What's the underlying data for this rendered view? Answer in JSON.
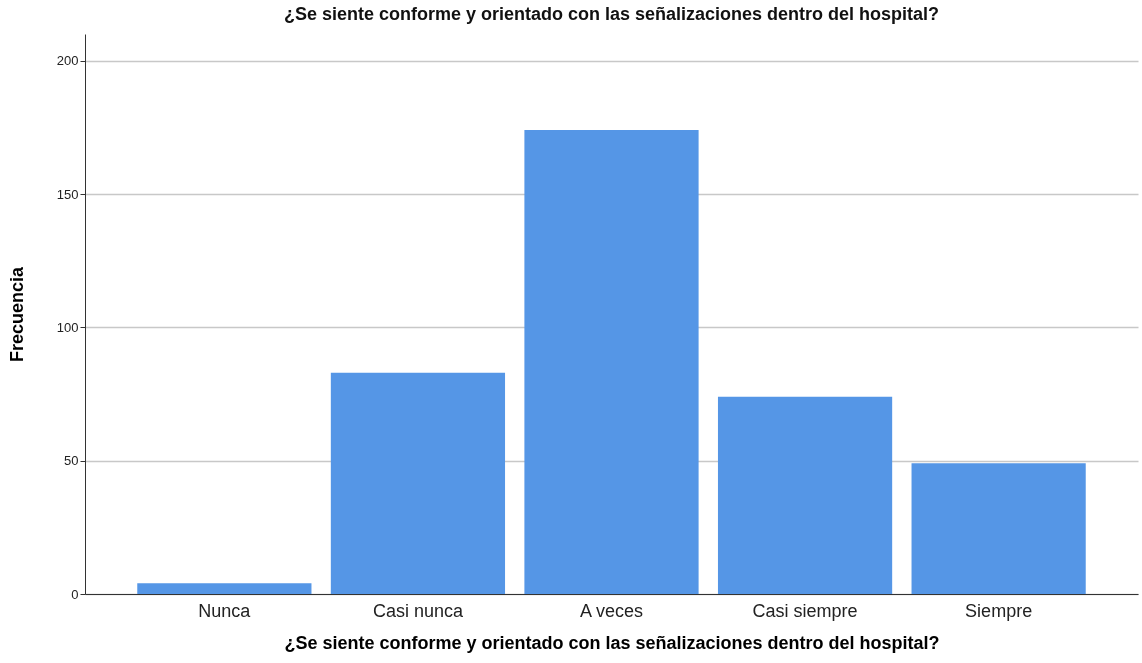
{
  "chart_data": {
    "type": "bar",
    "title": "¿Se siente conforme y orientado con las señalizaciones dentro del hospital?",
    "xlabel": "¿Se siente conforme y orientado con las señalizaciones dentro del hospital?",
    "ylabel": "Frecuencia",
    "categories": [
      "Nunca",
      "Casi nunca",
      "A veces",
      "Casi siempre",
      "Siempre"
    ],
    "values": [
      4,
      83,
      174,
      74,
      49
    ],
    "color": "#5596e6",
    "ylim": [
      0,
      210
    ],
    "yticks": [
      0,
      50,
      100,
      150,
      200
    ],
    "grid": "y"
  }
}
